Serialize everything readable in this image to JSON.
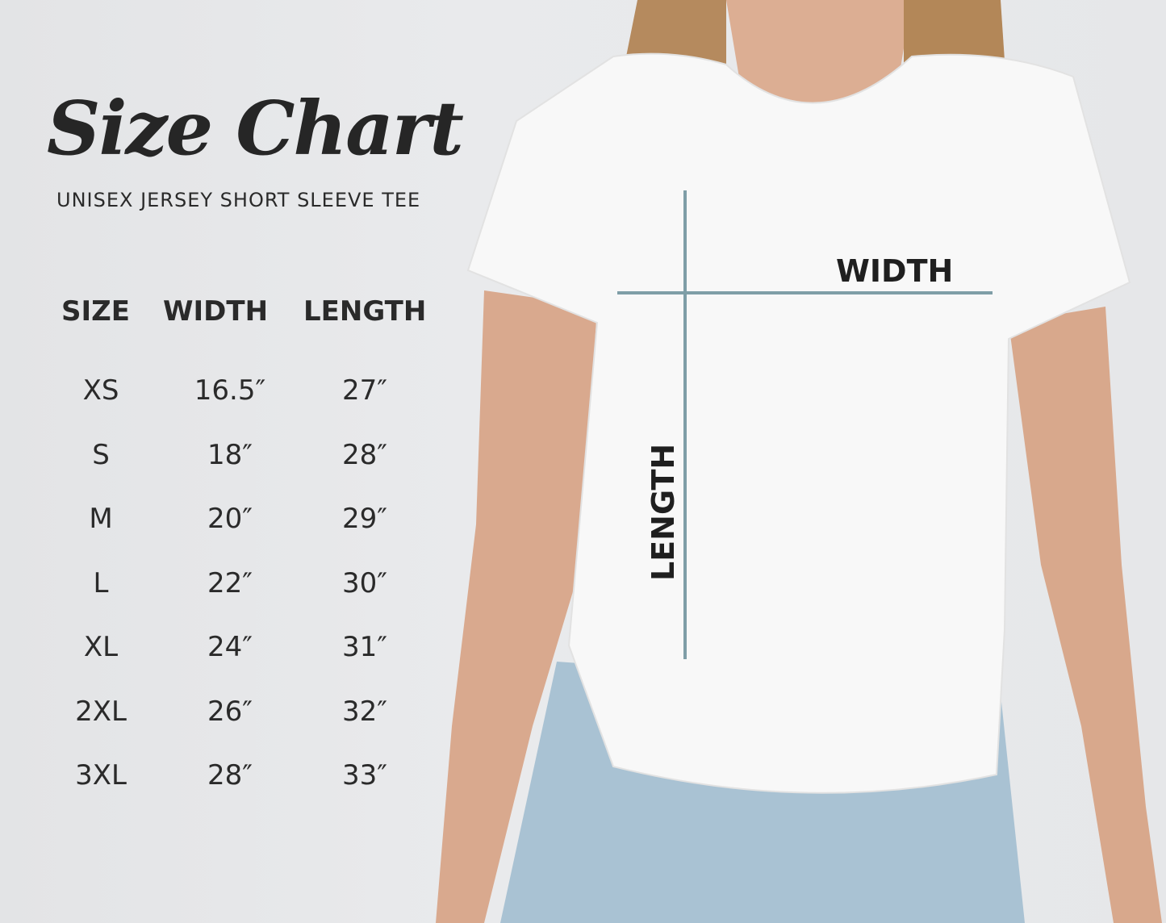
{
  "title": "Size Chart",
  "subtitle": "UNISEX JERSEY SHORT SLEEVE TEE",
  "table": {
    "headers": [
      "SIZE",
      "WIDTH",
      "LENGTH"
    ],
    "rows": [
      [
        "XS",
        "16.5″",
        "27″"
      ],
      [
        "S",
        "18″",
        "28″"
      ],
      [
        "M",
        "20″",
        "29″"
      ],
      [
        "L",
        "22″",
        "30″"
      ],
      [
        "XL",
        "24″",
        "31″"
      ],
      [
        "2XL",
        "26″",
        "32″"
      ],
      [
        "3XL",
        "28″",
        "33″"
      ]
    ]
  },
  "diagram": {
    "width_label": "WIDTH",
    "length_label": "LENGTH",
    "line_color": "#7f9ea7"
  }
}
